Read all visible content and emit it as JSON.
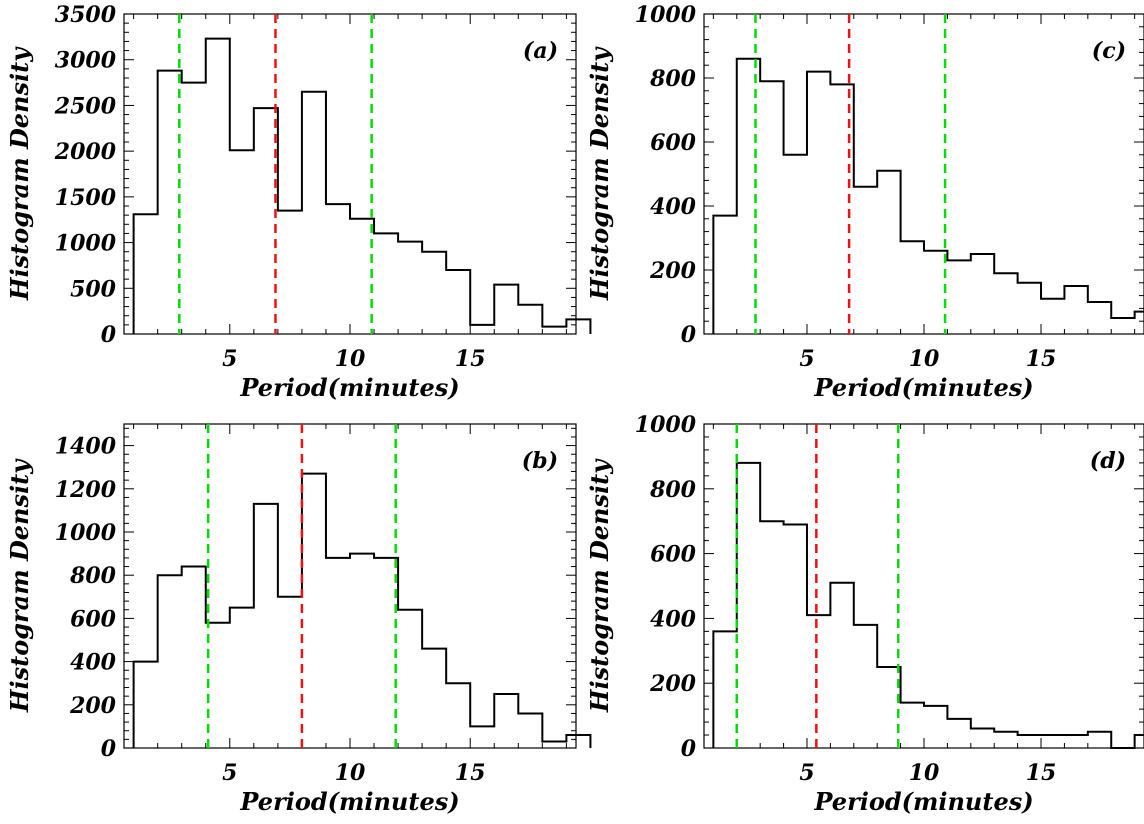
{
  "chart_data": [
    {
      "type": "bar",
      "panel_label": "(a)",
      "xlabel": "Period(minutes)",
      "ylabel": "Histogram Density",
      "xlim": [
        0.6,
        19.4
      ],
      "ylim": [
        0,
        3500
      ],
      "xticks": [
        5,
        10,
        15
      ],
      "yticks": [
        0,
        500,
        1000,
        1500,
        2000,
        2500,
        3000,
        3500
      ],
      "bin_edges": [
        1,
        2,
        3,
        4,
        5,
        6,
        7,
        8,
        9,
        10,
        11,
        12,
        13,
        14,
        15,
        16,
        17,
        18,
        19
      ],
      "values": [
        1310,
        2880,
        2750,
        3230,
        2010,
        2470,
        1350,
        2650,
        1420,
        1260,
        1100,
        1010,
        900,
        700,
        100,
        540,
        320,
        80,
        160
      ],
      "vlines": [
        {
          "x": 2.9,
          "color": "#00dd00"
        },
        {
          "x": 6.9,
          "color": "#ee1111"
        },
        {
          "x": 10.9,
          "color": "#00dd00"
        }
      ]
    },
    {
      "type": "bar",
      "panel_label": "(b)",
      "xlabel": "Period(minutes)",
      "ylabel": "Histogram Density",
      "xlim": [
        0.6,
        19.4
      ],
      "ylim": [
        0,
        1500
      ],
      "xticks": [
        5,
        10,
        15
      ],
      "yticks": [
        0,
        200,
        400,
        600,
        800,
        1000,
        1200,
        1400
      ],
      "bin_edges": [
        1,
        2,
        3,
        4,
        5,
        6,
        7,
        8,
        9,
        10,
        11,
        12,
        13,
        14,
        15,
        16,
        17,
        18,
        19
      ],
      "values": [
        400,
        800,
        840,
        580,
        650,
        1130,
        700,
        1270,
        880,
        900,
        880,
        640,
        460,
        300,
        100,
        250,
        160,
        30,
        60
      ],
      "vlines": [
        {
          "x": 4.1,
          "color": "#00dd00"
        },
        {
          "x": 8.0,
          "color": "#ee1111"
        },
        {
          "x": 11.9,
          "color": "#00dd00"
        }
      ]
    },
    {
      "type": "bar",
      "panel_label": "(c)",
      "xlabel": "Period(minutes)",
      "ylabel": "Histogram Density",
      "xlim": [
        0.6,
        19.4
      ],
      "ylim": [
        0,
        1000
      ],
      "xticks": [
        5,
        10,
        15
      ],
      "yticks": [
        0,
        200,
        400,
        600,
        800,
        1000
      ],
      "bin_edges": [
        1,
        2,
        3,
        4,
        5,
        6,
        7,
        8,
        9,
        10,
        11,
        12,
        13,
        14,
        15,
        16,
        17,
        18,
        19
      ],
      "values": [
        370,
        860,
        790,
        560,
        820,
        780,
        460,
        510,
        290,
        260,
        230,
        250,
        190,
        160,
        110,
        150,
        100,
        50,
        70
      ],
      "vlines": [
        {
          "x": 2.8,
          "color": "#00dd00"
        },
        {
          "x": 6.8,
          "color": "#ee1111"
        },
        {
          "x": 10.9,
          "color": "#00dd00"
        }
      ]
    },
    {
      "type": "bar",
      "panel_label": "(d)",
      "xlabel": "Period(minutes)",
      "ylabel": "Histogram Density",
      "xlim": [
        0.6,
        19.4
      ],
      "ylim": [
        0,
        1000
      ],
      "xticks": [
        5,
        10,
        15
      ],
      "yticks": [
        0,
        200,
        400,
        600,
        800,
        1000
      ],
      "bin_edges": [
        1,
        2,
        3,
        4,
        5,
        6,
        7,
        8,
        9,
        10,
        11,
        12,
        13,
        14,
        15,
        16,
        17,
        18,
        19
      ],
      "values": [
        360,
        880,
        700,
        690,
        410,
        510,
        380,
        250,
        140,
        130,
        90,
        60,
        50,
        40,
        40,
        40,
        50,
        0,
        40
      ],
      "vlines": [
        {
          "x": 2.0,
          "color": "#00dd00"
        },
        {
          "x": 5.4,
          "color": "#ee1111"
        },
        {
          "x": 8.9,
          "color": "#00dd00"
        }
      ]
    }
  ]
}
